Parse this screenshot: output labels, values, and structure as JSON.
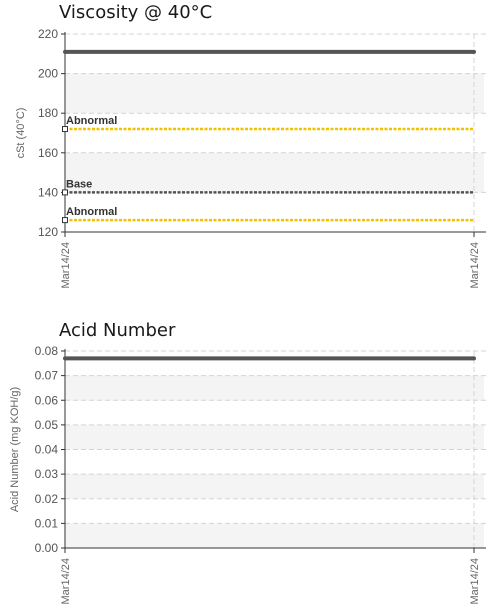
{
  "chart_data": [
    {
      "type": "line",
      "title": "Viscosity @ 40°C",
      "ylabel": "cSt (40°C)",
      "xlabel": "",
      "ylim": [
        120,
        220
      ],
      "yticks": [
        "220",
        "200",
        "180",
        "160",
        "140",
        "120"
      ],
      "ytick_values": [
        220,
        200,
        180,
        160,
        140,
        120
      ],
      "categories": [
        "Mar14/24",
        "Mar14/24"
      ],
      "grid": true,
      "series": [
        {
          "values": [
            211,
            211
          ],
          "color": "#555555"
        }
      ],
      "reference_lines": [
        {
          "label": "Abnormal",
          "value": 172,
          "color": "#f2c200"
        },
        {
          "label": "Base",
          "value": 140,
          "color": "#555555"
        },
        {
          "label": "Abnormal",
          "value": 126,
          "color": "#f2c200"
        }
      ]
    },
    {
      "type": "line",
      "title": "Acid Number",
      "ylabel": "Acid Number (mg KOH/g)",
      "xlabel": "",
      "ylim": [
        0,
        0.08
      ],
      "yticks": [
        "0.08",
        "0.07",
        "0.06",
        "0.05",
        "0.04",
        "0.03",
        "0.02",
        "0.01",
        "0.00"
      ],
      "ytick_values": [
        0.08,
        0.07,
        0.06,
        0.05,
        0.04,
        0.03,
        0.02,
        0.01,
        0.0
      ],
      "categories": [
        "Mar14/24",
        "Mar14/24"
      ],
      "grid": true,
      "series": [
        {
          "values": [
            0.077,
            0.077
          ],
          "color": "#555555"
        }
      ],
      "reference_lines": []
    }
  ]
}
